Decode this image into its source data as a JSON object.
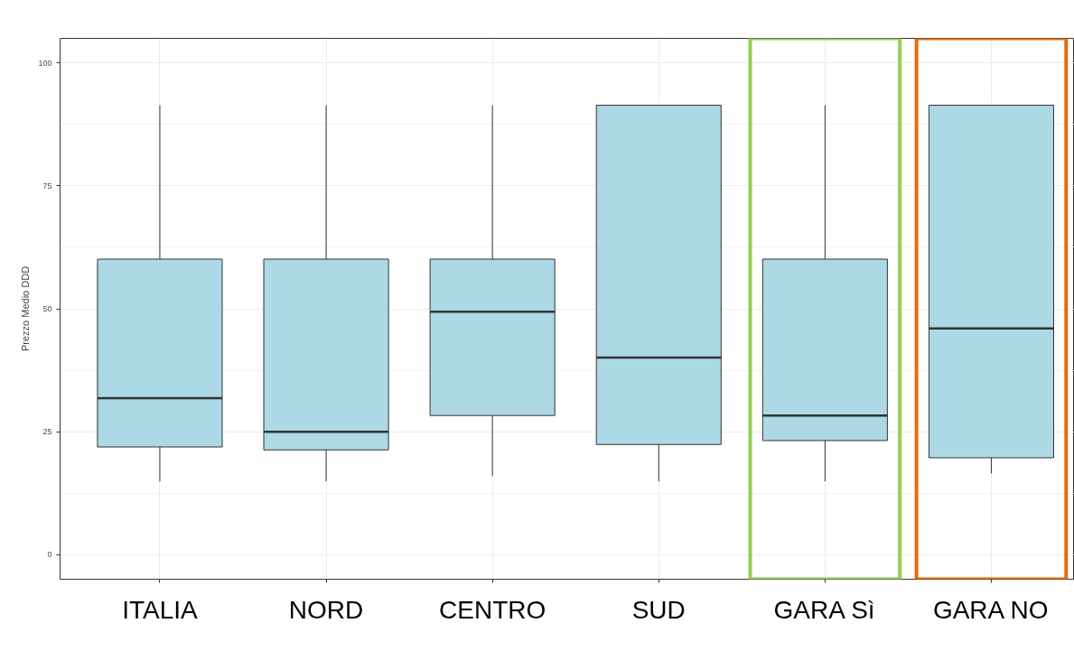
{
  "chart_data": {
    "type": "box",
    "ylabel": "Prezzo Medio DDD",
    "categories": [
      "ITALIA",
      "NORD",
      "CENTRO",
      "SUD",
      "GARA Sì",
      "GARA NO"
    ],
    "boxes": [
      {
        "low": 14.9,
        "q1": 21.9,
        "median": 31.8,
        "q3": 60.1,
        "high": 91.4
      },
      {
        "low": 14.9,
        "q1": 21.3,
        "median": 25.0,
        "q3": 60.1,
        "high": 91.4
      },
      {
        "low": 16.0,
        "q1": 28.3,
        "median": 49.4,
        "q3": 60.1,
        "high": 91.4
      },
      {
        "low": 14.9,
        "q1": 22.4,
        "median": 40.1,
        "q3": 91.4,
        "high": 91.4
      },
      {
        "low": 14.9,
        "q1": 23.2,
        "median": 28.3,
        "q3": 60.1,
        "high": 91.4
      },
      {
        "low": 16.5,
        "q1": 19.7,
        "median": 46.0,
        "q3": 91.4,
        "high": 91.4
      }
    ],
    "color": "#add8e6",
    "ylim": [
      -5,
      105
    ],
    "yticks": [
      0,
      25,
      50,
      75,
      100
    ],
    "grid": true
  }
}
